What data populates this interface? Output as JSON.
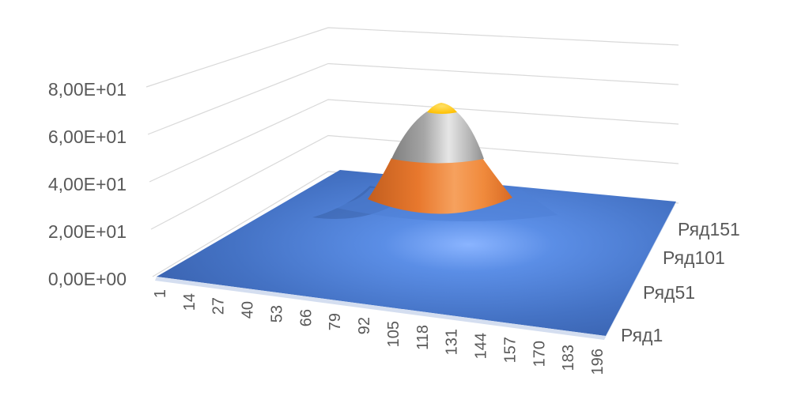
{
  "chart_data": {
    "type": "surface",
    "title": "",
    "xlabel": "",
    "ylabel": "",
    "zlim": [
      0,
      80
    ],
    "z_ticks": [
      "0,00E+00",
      "2,00E+01",
      "4,00E+01",
      "6,00E+01",
      "8,00E+01"
    ],
    "z_values": [
      0,
      20,
      40,
      60,
      80
    ],
    "x_ticks": [
      "1",
      "14",
      "27",
      "40",
      "53",
      "66",
      "79",
      "92",
      "105",
      "118",
      "131",
      "144",
      "157",
      "170",
      "183",
      "196"
    ],
    "series_ticks": [
      "Ряд1",
      "Ряд51",
      "Ряд101",
      "Ряд151"
    ],
    "surface": {
      "shape": "gaussian peak",
      "peak_value": 72,
      "peak_x_index": 100,
      "peak_series_index": 100,
      "points_per_axis": 200
    },
    "bands": [
      {
        "range": [
          0,
          20
        ],
        "color": "#4472C4"
      },
      {
        "range": [
          20,
          40
        ],
        "color": "#ED7D31"
      },
      {
        "range": [
          40,
          60
        ],
        "color": "#A5A5A5"
      },
      {
        "range": [
          60,
          80
        ],
        "color": "#FFC000"
      }
    ]
  }
}
